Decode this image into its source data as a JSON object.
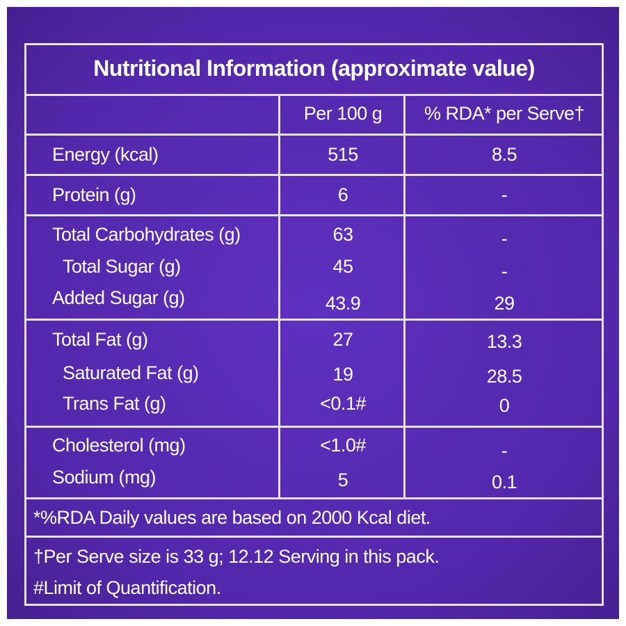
{
  "title": "Nutritional Information (approximate value)",
  "table": {
    "header": [
      "Per 100 g",
      "% RDA* per Serve†"
    ],
    "groups": [
      {
        "rows": [
          {
            "label": "Energy (kcal)",
            "per_100g": "515",
            "rda_per_serve": "8.5"
          }
        ]
      },
      {
        "rows": [
          {
            "label": "Protein (g)",
            "per_100g": "6",
            "rda_per_serve": "-"
          }
        ]
      },
      {
        "rows": [
          {
            "label": "Total Carbohydrates (g)",
            "per_100g": "63",
            "rda_per_serve": "-"
          },
          {
            "label": "Total Sugar (g)",
            "per_100g": "45",
            "rda_per_serve": "-"
          },
          {
            "label": "Added Sugar (g)",
            "per_100g": "43.9",
            "rda_per_serve": "29"
          }
        ]
      },
      {
        "rows": [
          {
            "label": "Total Fat (g)",
            "per_100g": "27",
            "rda_per_serve": "13.3"
          },
          {
            "label": "Saturated Fat (g)",
            "per_100g": "19",
            "rda_per_serve": "28.5"
          },
          {
            "label": "Trans Fat (g)",
            "per_100g": "<0.1#",
            "rda_per_serve": "0"
          }
        ]
      },
      {
        "rows": [
          {
            "label": "Cholesterol (mg)",
            "per_100g": "<1.0#",
            "rda_per_serve": "-"
          },
          {
            "label": "Sodium (mg)",
            "per_100g": "5",
            "rda_per_serve": "0.1"
          }
        ]
      }
    ]
  },
  "footnotes": [
    "*%RDA Daily values are based on 2000 Kcal diet.",
    "†Per Serve size is 33 g; 12.12 Serving in this pack.",
    "#Limit of Quantification."
  ]
}
